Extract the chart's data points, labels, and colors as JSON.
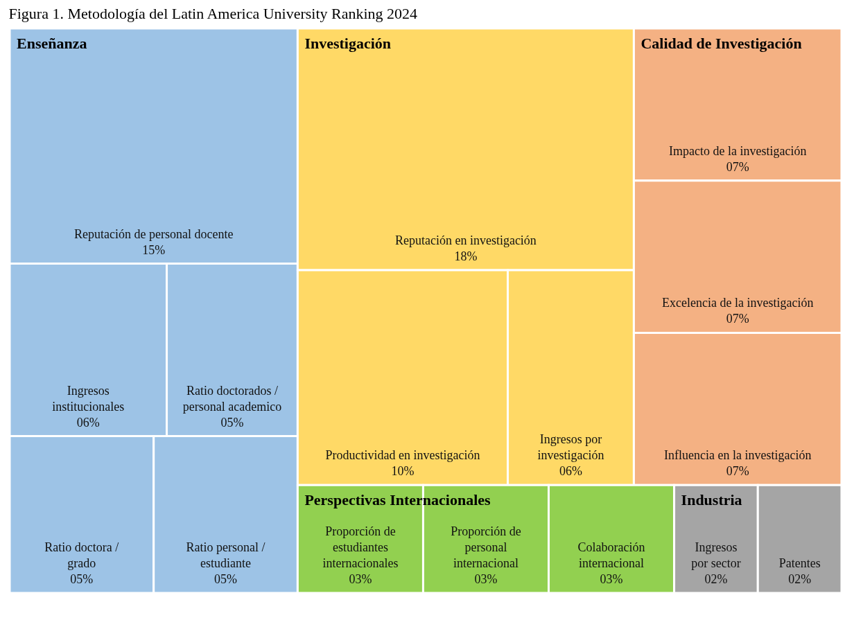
{
  "chart_data": {
    "type": "other",
    "title": "Figura 1. Metodología del Latin America University Ranking 2024",
    "categories": [
      "Reputación de personal docente",
      "Ingresos institucionales",
      "Ratio doctorados / personal academico",
      "Ratio doctora / grado",
      "Ratio personal / estudiante",
      "Reputación en investigación",
      "Productividad en investigación",
      "Ingresos por investigación",
      "Impacto de la investigación",
      "Excelencia de la investigación",
      "Influencia en la investigación",
      "Proporción de estudiantes internacionales",
      "Proporción de personal internacional",
      "Colaboración internacional",
      "Ingresos por sector",
      "Patentes"
    ],
    "series": [
      {
        "name": "Enseñanza",
        "color": "#9dc3e6",
        "values": [
          15,
          6,
          5,
          5,
          5,
          null,
          null,
          null,
          null,
          null,
          null,
          null,
          null,
          null,
          null,
          null
        ],
        "value_labels": [
          "15%",
          "06%",
          "05%",
          "05%",
          "05%",
          null,
          null,
          null,
          null,
          null,
          null,
          null,
          null,
          null,
          null,
          null
        ]
      },
      {
        "name": "Investigación",
        "color": "#ffd966",
        "values": [
          null,
          null,
          null,
          null,
          null,
          18,
          10,
          6,
          null,
          null,
          null,
          null,
          null,
          null,
          null,
          null
        ],
        "value_labels": [
          null,
          null,
          null,
          null,
          null,
          "18%",
          "10%",
          "06%",
          null,
          null,
          null,
          null,
          null,
          null,
          null,
          null
        ]
      },
      {
        "name": "Calidad de Investigación",
        "color": "#f4b183",
        "values": [
          null,
          null,
          null,
          null,
          null,
          null,
          null,
          null,
          7,
          7,
          7,
          null,
          null,
          null,
          null,
          null
        ],
        "value_labels": [
          null,
          null,
          null,
          null,
          null,
          null,
          null,
          null,
          "07%",
          "07%",
          "07%",
          null,
          null,
          null,
          null,
          null
        ]
      },
      {
        "name": "Perspectivas Internacionales",
        "color": "#92d050",
        "values": [
          null,
          null,
          null,
          null,
          null,
          null,
          null,
          null,
          null,
          null,
          null,
          3,
          3,
          3,
          null,
          null
        ],
        "value_labels": [
          null,
          null,
          null,
          null,
          null,
          null,
          null,
          null,
          null,
          null,
          null,
          "03%",
          "03%",
          "03%",
          null,
          null
        ]
      },
      {
        "name": "Industria",
        "color": "#a5a5a5",
        "values": [
          null,
          null,
          null,
          null,
          null,
          null,
          null,
          null,
          null,
          null,
          null,
          null,
          null,
          null,
          2,
          2
        ],
        "value_labels": [
          null,
          null,
          null,
          null,
          null,
          null,
          null,
          null,
          null,
          null,
          null,
          null,
          null,
          null,
          "02%",
          "02%"
        ]
      }
    ]
  }
}
